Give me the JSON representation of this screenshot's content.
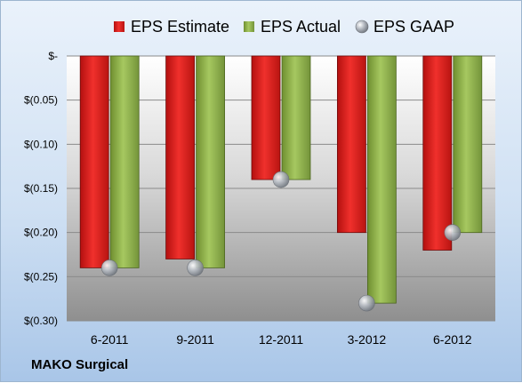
{
  "company_label": "MAKO Surgical",
  "chart_data": {
    "type": "bar",
    "categories": [
      "6-2011",
      "9-2011",
      "12-2011",
      "3-2012",
      "6-2012"
    ],
    "series": [
      {
        "name": "EPS Estimate",
        "values": [
          -0.24,
          -0.23,
          -0.14,
          -0.2,
          -0.22
        ],
        "color": "#e0201e"
      },
      {
        "name": "EPS Actual",
        "values": [
          -0.24,
          -0.24,
          -0.14,
          -0.28,
          -0.2
        ],
        "color": "#93b650"
      },
      {
        "name": "EPS GAAP",
        "values": [
          -0.24,
          -0.24,
          -0.14,
          -0.28,
          -0.2
        ],
        "color": "#a6aab0",
        "marker": "sphere"
      }
    ],
    "ytick_labels": [
      "$-",
      "$(0.05)",
      "$(0.10)",
      "$(0.15)",
      "$(0.20)",
      "$(0.25)",
      "$(0.30)"
    ],
    "ytick_values": [
      0,
      -0.05,
      -0.1,
      -0.15,
      -0.2,
      -0.25,
      -0.3
    ],
    "ylim": [
      -0.3,
      0
    ],
    "grid": true,
    "legend_position": "top"
  }
}
